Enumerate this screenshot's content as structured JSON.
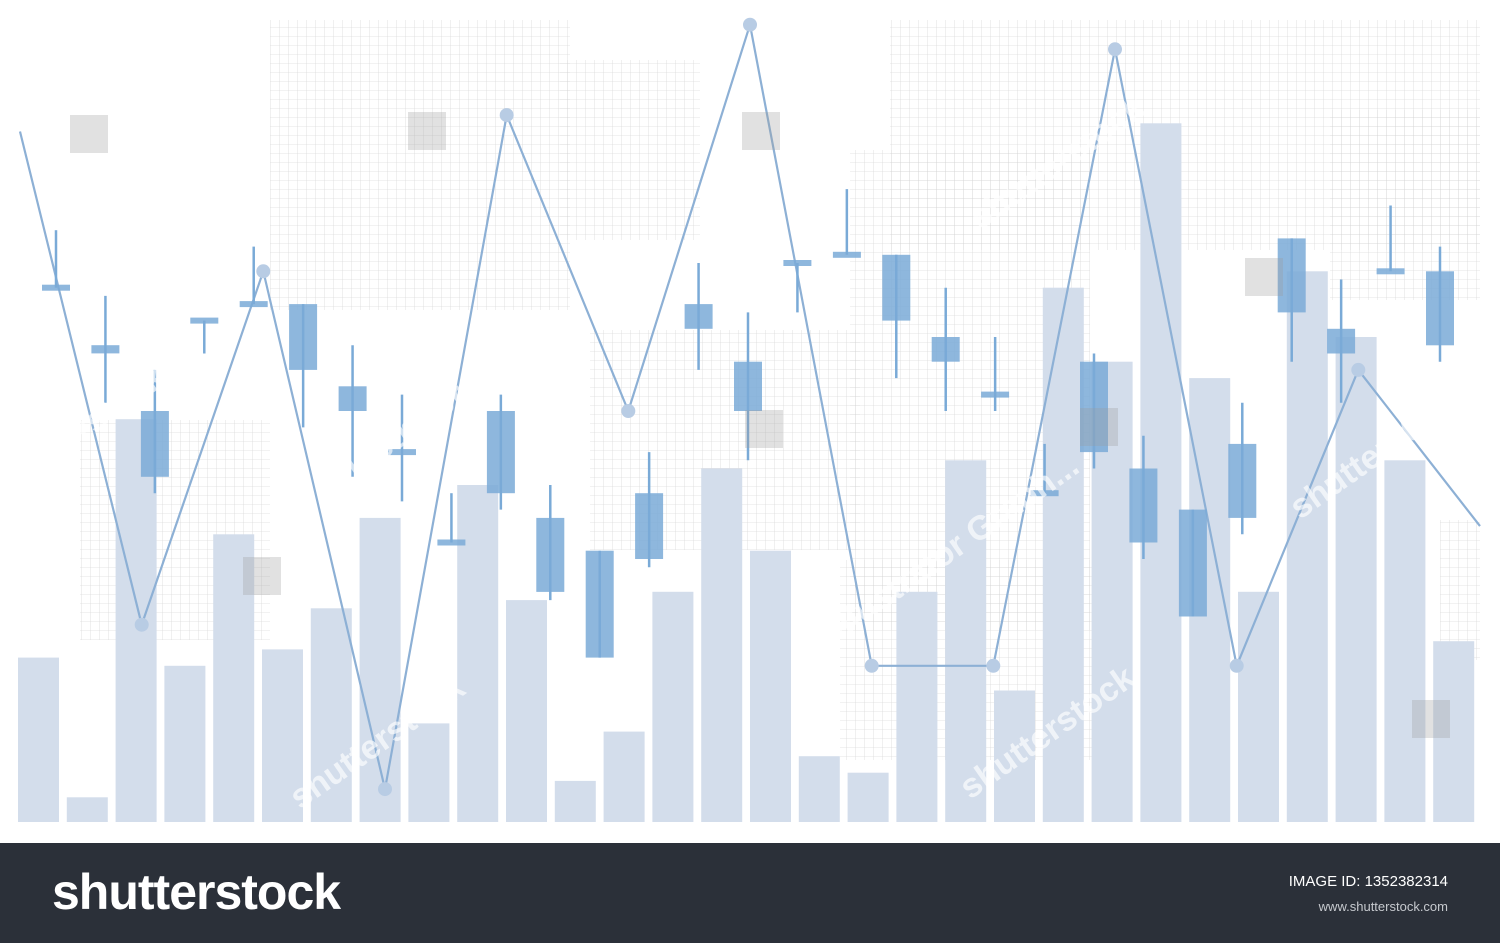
{
  "chart_data": {
    "type": "bar",
    "title": "",
    "xlabel": "",
    "ylabel": "",
    "ylim": [
      0,
      100
    ],
    "grid": false,
    "legend": "none",
    "bar_values": [
      20,
      3,
      49,
      19,
      35,
      21,
      26,
      37,
      12,
      41,
      27,
      5,
      11,
      28,
      43,
      33,
      8,
      6,
      28,
      44,
      16,
      65,
      56,
      85,
      54,
      28,
      67,
      59,
      44,
      22
    ],
    "line_values": [
      84,
      24,
      67,
      4,
      86,
      50,
      97,
      19,
      19,
      94,
      19,
      55,
      36
    ],
    "candles": [
      {
        "open": 65,
        "close": 65,
        "high": 72,
        "low": 65
      },
      {
        "open": 57,
        "close": 58,
        "high": 64,
        "low": 51
      },
      {
        "open": 42,
        "close": 50,
        "high": 55,
        "low": 40
      },
      {
        "open": 61,
        "close": 61,
        "high": 61,
        "low": 57
      },
      {
        "open": 63,
        "close": 63,
        "high": 70,
        "low": 63
      },
      {
        "open": 55,
        "close": 63,
        "high": 63,
        "low": 48
      },
      {
        "open": 50,
        "close": 53,
        "high": 58,
        "low": 42
      },
      {
        "open": 45,
        "close": 45,
        "high": 52,
        "low": 39
      },
      {
        "open": 34,
        "close": 34,
        "high": 40,
        "low": 34
      },
      {
        "open": 40,
        "close": 50,
        "high": 52,
        "low": 38
      },
      {
        "open": 28,
        "close": 37,
        "high": 41,
        "low": 27
      },
      {
        "open": 20,
        "close": 33,
        "high": 33,
        "low": 20
      },
      {
        "open": 32,
        "close": 40,
        "high": 45,
        "low": 31
      },
      {
        "open": 60,
        "close": 63,
        "high": 68,
        "low": 55
      },
      {
        "open": 50,
        "close": 56,
        "high": 62,
        "low": 44
      },
      {
        "open": 68,
        "close": 68,
        "high": 68,
        "low": 62
      },
      {
        "open": 69,
        "close": 69,
        "high": 77,
        "low": 69
      },
      {
        "open": 61,
        "close": 69,
        "high": 69,
        "low": 54
      },
      {
        "open": 56,
        "close": 59,
        "high": 65,
        "low": 50
      },
      {
        "open": 52,
        "close": 52,
        "high": 59,
        "low": 50
      },
      {
        "open": 40,
        "close": 40,
        "high": 46,
        "low": 40
      },
      {
        "open": 45,
        "close": 56,
        "high": 57,
        "low": 43
      },
      {
        "open": 34,
        "close": 43,
        "high": 47,
        "low": 32
      },
      {
        "open": 25,
        "close": 38,
        "high": 38,
        "low": 25
      },
      {
        "open": 37,
        "close": 46,
        "high": 51,
        "low": 35
      },
      {
        "open": 62,
        "close": 71,
        "high": 71,
        "low": 56
      },
      {
        "open": 57,
        "close": 60,
        "high": 66,
        "low": 51
      },
      {
        "open": 67,
        "close": 67,
        "high": 75,
        "low": 67
      },
      {
        "open": 58,
        "close": 67,
        "high": 70,
        "low": 56
      }
    ],
    "colors": {
      "bars": "#d3ddeb",
      "candles": "#7aaad7",
      "line": "#8db0d5",
      "markers": "#b8cce4",
      "grid_texture": "#c9c9c9"
    }
  },
  "footer": {
    "brand": "shutterstock",
    "image_id_label": "IMAGE ID: 1352382314",
    "url": "www.shutterstock.com"
  },
  "watermarks": [
    "shutterstock",
    "Illustrator Graph..."
  ]
}
